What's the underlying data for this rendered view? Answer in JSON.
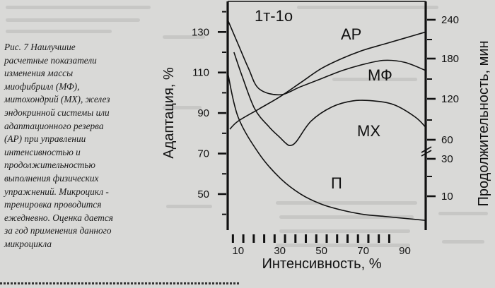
{
  "caption": {
    "lines": [
      "Рис. 7 Наилучшие",
      "расчетные показатели",
      "изменения массы",
      "миофибрилл (МФ),",
      "митохондрий (МХ), желез",
      "эндокринной системы или",
      "адаптационного резерва",
      "(АР) при управлении",
      "интенсивностью и",
      "продолжительностью",
      "выполнения физических",
      "упражнений. Микроцикл -",
      "тренировка проводится",
      "ежедневно. Оценка дается",
      "за год применения данного",
      "микроцикла"
    ]
  },
  "chart_data": {
    "type": "line",
    "title": "1т-1о",
    "xlabel": "Интенсивность, %",
    "ylabel_left": "Адаптация, %",
    "ylabel_right": "Продолжительность, мин",
    "x_ticks": [
      10,
      30,
      50,
      70,
      90
    ],
    "x_range": [
      5,
      100
    ],
    "y_left_ticks": [
      50,
      70,
      90,
      110,
      130
    ],
    "y_left_range": [
      35,
      143
    ],
    "y_right_ticks": [
      10,
      30,
      60,
      120,
      180,
      240
    ],
    "curve_labels": [
      "АР",
      "МФ",
      "МХ",
      "П"
    ],
    "series": [
      {
        "name": "АР",
        "axis": "left",
        "x": [
          5,
          10,
          15,
          20,
          30,
          40,
          50,
          60,
          70,
          80,
          90,
          100
        ],
        "y": [
          136,
          124,
          112,
          102,
          99,
          103,
          107,
          111,
          114,
          116,
          115,
          111
        ]
      },
      {
        "name": "МФ",
        "axis": "left",
        "x": [
          6,
          10,
          20,
          30,
          40,
          50,
          60,
          70,
          80,
          90,
          100
        ],
        "y": [
          82,
          86,
          92,
          98,
          105,
          112,
          117,
          121,
          124,
          127,
          130
        ]
      },
      {
        "name": "МХ",
        "axis": "left",
        "x": [
          8,
          12,
          18,
          25,
          30,
          33,
          35,
          38,
          45,
          55,
          65,
          75,
          85,
          95,
          100
        ],
        "y": [
          120,
          108,
          92,
          83,
          78,
          75,
          74,
          76,
          86,
          93,
          96,
          96,
          94,
          88,
          83
        ]
      },
      {
        "name": "П",
        "axis": "left",
        "x": [
          5,
          10,
          20,
          30,
          40,
          50,
          60,
          70,
          80,
          90,
          100
        ],
        "y": [
          110,
          88,
          70,
          58,
          50,
          45,
          42,
          40,
          39,
          38,
          37
        ]
      }
    ]
  }
}
